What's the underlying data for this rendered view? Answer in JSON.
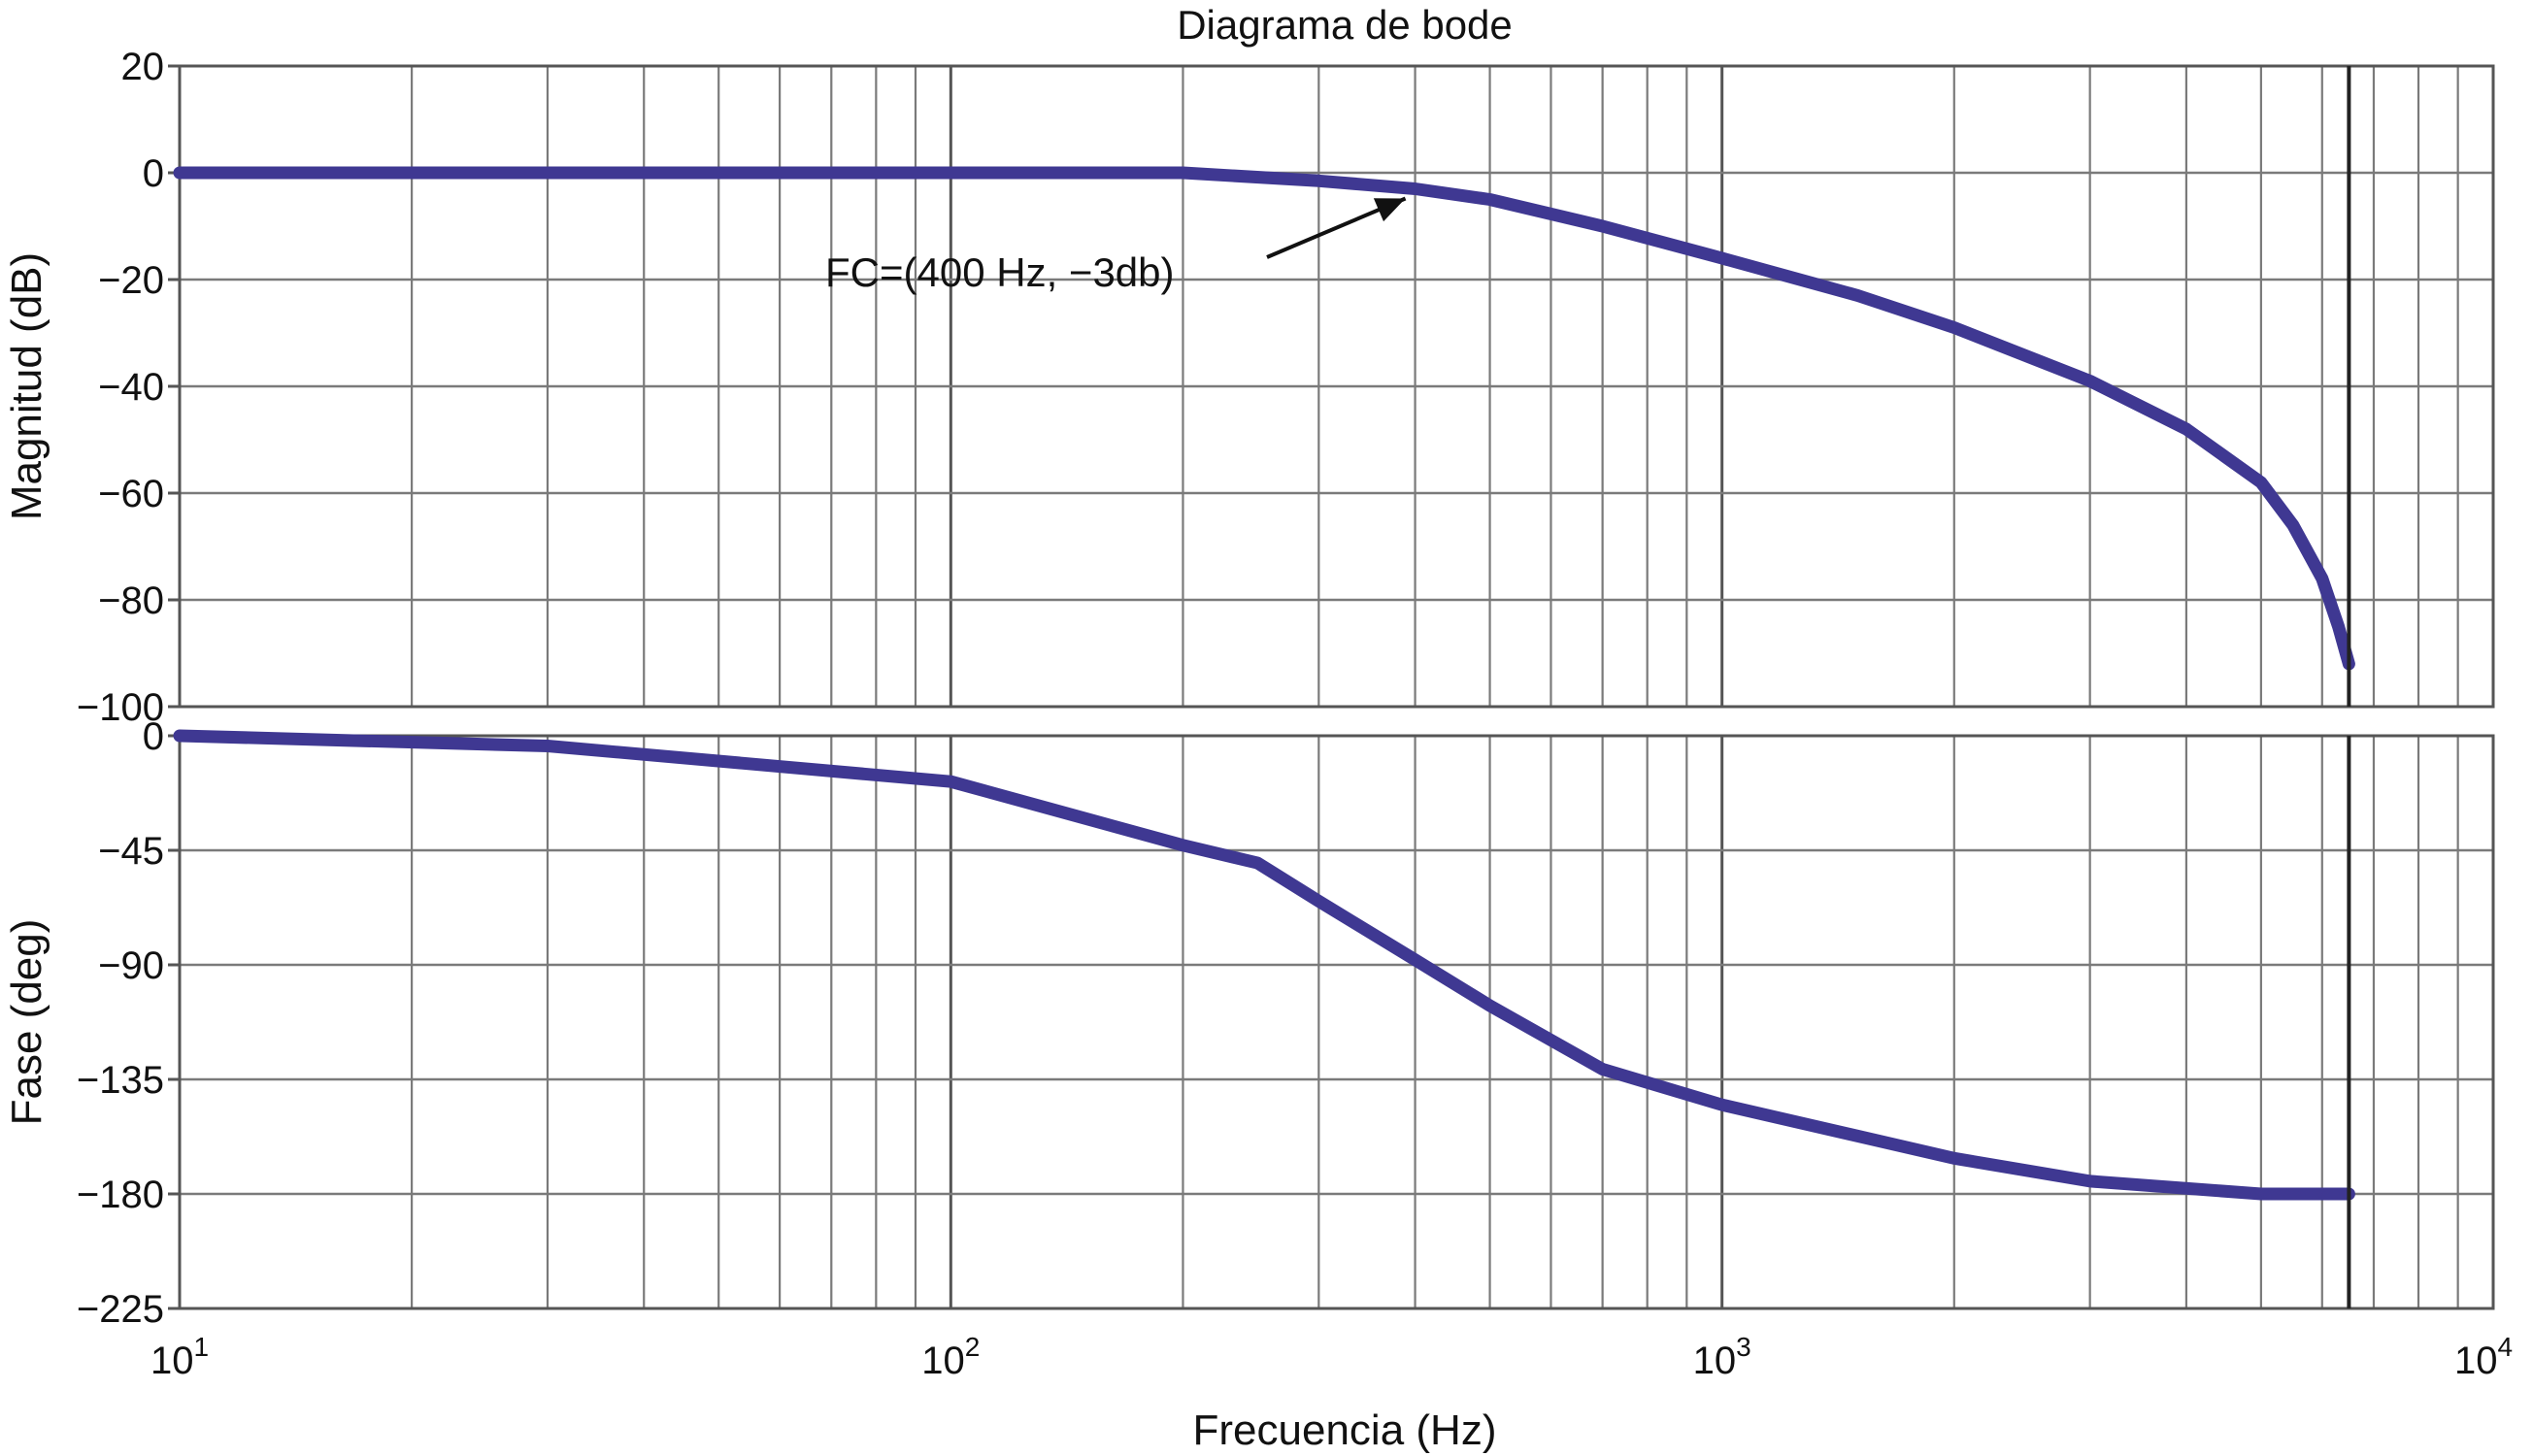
{
  "chart_data": [
    {
      "type": "line",
      "title": "Diagrama de bode",
      "xlabel": "",
      "ylabel": "Magnitud (dB)",
      "xscale": "log",
      "xlim": [
        10,
        10000
      ],
      "ylim": [
        -100,
        20
      ],
      "yticks": [
        "20",
        "0",
        "−20",
        "−40",
        "−60",
        "−80",
        "−100"
      ],
      "grid": true,
      "line_color": "#3f3892",
      "series": [
        {
          "x": [
            10,
            20,
            50,
            100,
            200,
            300,
            400,
            500,
            700,
            1000,
            1500,
            2000,
            3000,
            4000,
            5000,
            5500,
            6000,
            6300,
            6500
          ],
          "values": [
            0,
            0,
            0,
            0,
            0,
            -1.5,
            -3,
            -5,
            -10,
            -16,
            -23,
            -29,
            -39,
            -48,
            -58,
            -66,
            -76,
            -85,
            -92
          ]
        }
      ],
      "annotation": {
        "text": "FC=(400 Hz, −3db)",
        "x": 400,
        "y": -3
      }
    },
    {
      "type": "line",
      "xlabel": "Frecuencia (Hz)",
      "ylabel": "Fase (deg)",
      "xscale": "log",
      "xlim": [
        10,
        10000
      ],
      "ylim": [
        -225,
        0
      ],
      "yticks": [
        "0",
        "−45",
        "−90",
        "−135",
        "−180",
        "−225"
      ],
      "xticks": [
        {
          "base": "10",
          "exp": "1"
        },
        {
          "base": "10",
          "exp": "2"
        },
        {
          "base": "10",
          "exp": "3"
        },
        {
          "base": "10",
          "exp": "4"
        }
      ],
      "grid": true,
      "line_color": "#3f3892",
      "series": [
        {
          "x": [
            10,
            30,
            100,
            200,
            250,
            300,
            400,
            500,
            700,
            1000,
            2000,
            3000,
            5000,
            6500
          ],
          "values": [
            0,
            -4,
            -18,
            -43,
            -50,
            -65,
            -88,
            -106,
            -131,
            -145,
            -166,
            -175,
            -180,
            -180
          ]
        }
      ]
    }
  ]
}
